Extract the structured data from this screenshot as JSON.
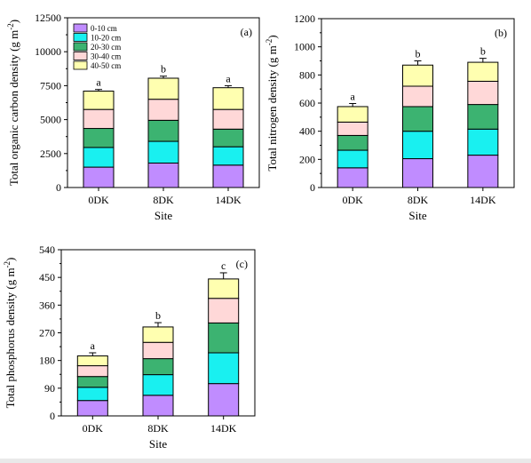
{
  "legend": [
    "0-10 cm",
    "10-20 cm",
    "20-30 cm",
    "30-40 cm",
    "40-50 cm"
  ],
  "colors": [
    "#c08cff",
    "#19f0f0",
    "#3cb371",
    "#ffd8d8",
    "#ffffb0"
  ],
  "chart_data": [
    {
      "type": "bar",
      "stacked": true,
      "panel_label": "(a)",
      "categories": [
        "0DK",
        "8DK",
        "14DK"
      ],
      "xlabel": "Site",
      "ylabel": "Total organic carbon density (g m",
      "ylabel_sup": "-2",
      "ylabel_end": ")",
      "ylim": [
        0,
        12500
      ],
      "yticks": [
        0,
        2500,
        5000,
        7500,
        10000,
        12500
      ],
      "series": [
        {
          "name": "0-10 cm",
          "values": [
            1500,
            1800,
            1650
          ]
        },
        {
          "name": "10-20 cm",
          "values": [
            1450,
            1600,
            1350
          ]
        },
        {
          "name": "20-30 cm",
          "values": [
            1400,
            1550,
            1300
          ]
        },
        {
          "name": "30-40 cm",
          "values": [
            1400,
            1550,
            1450
          ]
        },
        {
          "name": "40-50 cm",
          "values": [
            1350,
            1550,
            1600
          ]
        }
      ],
      "errors": [
        120,
        150,
        150
      ],
      "letters": [
        "a",
        "b",
        "a"
      ],
      "legend_position": "top-left"
    },
    {
      "type": "bar",
      "stacked": true,
      "panel_label": "(b)",
      "categories": [
        "0DK",
        "8DK",
        "14DK"
      ],
      "xlabel": "Site",
      "ylabel": "Total nitrogen density (g m",
      "ylabel_sup": "-2",
      "ylabel_end": ")",
      "ylim": [
        0,
        1200
      ],
      "yticks": [
        0,
        200,
        400,
        600,
        800,
        1000,
        1200
      ],
      "series": [
        {
          "name": "0-10 cm",
          "values": [
            140,
            205,
            230
          ]
        },
        {
          "name": "10-20 cm",
          "values": [
            125,
            195,
            185
          ]
        },
        {
          "name": "20-30 cm",
          "values": [
            105,
            175,
            175
          ]
        },
        {
          "name": "30-40 cm",
          "values": [
            95,
            145,
            165
          ]
        },
        {
          "name": "40-50 cm",
          "values": [
            110,
            150,
            135
          ]
        }
      ],
      "errors": [
        22,
        30,
        28
      ],
      "letters": [
        "a",
        "b",
        "b"
      ]
    },
    {
      "type": "bar",
      "stacked": true,
      "panel_label": "(c)",
      "categories": [
        "0DK",
        "8DK",
        "14DK"
      ],
      "xlabel": "Site",
      "ylabel": "Total phosphorus density (g m",
      "ylabel_sup": "-2",
      "ylabel_end": ")",
      "ylim": [
        0,
        540
      ],
      "yticks": [
        0,
        90,
        180,
        270,
        360,
        450,
        540
      ],
      "series": [
        {
          "name": "0-10 cm",
          "values": [
            50,
            67,
            105
          ]
        },
        {
          "name": "10-20 cm",
          "values": [
            43,
            67,
            100
          ]
        },
        {
          "name": "20-30 cm",
          "values": [
            35,
            52,
            97
          ]
        },
        {
          "name": "30-40 cm",
          "values": [
            35,
            53,
            80
          ]
        },
        {
          "name": "40-50 cm",
          "values": [
            32,
            50,
            63
          ]
        }
      ],
      "errors": [
        10,
        14,
        20
      ],
      "letters": [
        "a",
        "b",
        "c"
      ]
    }
  ]
}
